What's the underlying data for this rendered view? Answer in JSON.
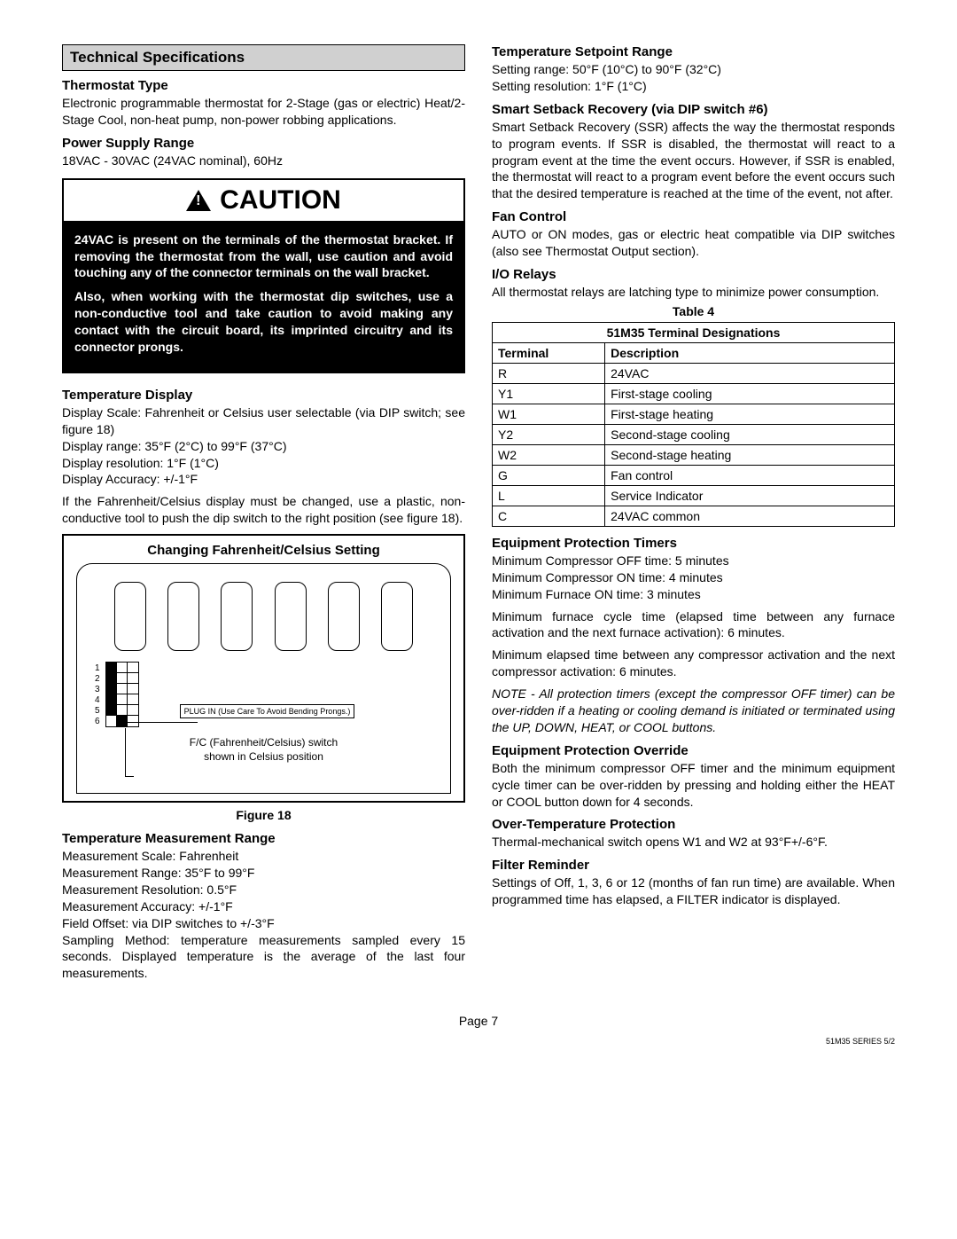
{
  "left": {
    "section_header": "Technical Specifications",
    "thermostat_type_head": "Thermostat Type",
    "thermostat_type_body": "Electronic programmable thermostat for 2-Stage (gas or electric) Heat/2-Stage Cool, non-heat pump, non-power robbing applications.",
    "power_head": "Power Supply Range",
    "power_body": "18VAC - 30VAC (24VAC nominal), 60Hz",
    "caution_title": "CAUTION",
    "caution_p1": "24VAC is present on the terminals of the thermostat bracket. If removing the thermostat from the wall, use caution and avoid touching any of the connector terminals  on the wall bracket.",
    "caution_p2": "Also, when working with the thermostat dip switches, use a non-conductive tool and take caution to avoid making any contact with the circuit board, its imprinted circuitry and its connector prongs.",
    "temp_display_head": "Temperature Display",
    "temp_display_scale": "Display Scale: Fahrenheit or Celsius user selectable (via DIP switch; see figure 18)",
    "temp_display_range": "Display range: 35°F (2°C) to 99°F (37°C)",
    "temp_display_res": "Display resolution: 1°F (1°C)",
    "temp_display_acc": "Display Accuracy: +/-1°F",
    "temp_display_note": "If the Fahrenheit/Celsius display must be changed, use a plastic, non-conductive tool to push the dip switch to the right position (see figure 18).",
    "figure_title": "Changing Fahrenheit/Celsius Setting",
    "plug_label": "PLUG IN (Use Care To Avoid Bending Prongs.)",
    "dip_caption_l1": "F/C (Fahrenheit/Celsius) switch",
    "dip_caption_l2": "shown in Celsius position",
    "figure_caption": "Figure 18",
    "meas_head": "Temperature Measurement Range",
    "meas_scale": "Measurement Scale: Fahrenheit",
    "meas_range": "Measurement Range: 35°F to 99°F",
    "meas_res": "Measurement Resolution: 0.5°F",
    "meas_acc": "Measurement Accuracy: +/-1°F",
    "meas_offset": "Field Offset: via DIP switches to +/-3°F",
    "meas_sampling": "Sampling Method: temperature measurements sampled every 15 seconds. Displayed temperature is the average of the last four measurements."
  },
  "right": {
    "setpoint_head": "Temperature Setpoint Range",
    "setpoint_range": "Setting range:  50°F (10°C) to 90°F (32°C)",
    "setpoint_res": "Setting resolution: 1°F (1°C)",
    "ssr_head": "Smart Setback Recovery (via DIP switch #6)",
    "ssr_body": "Smart Setback Recovery (SSR) affects the way the thermostat responds to program events. If SSR is disabled, the thermostat will react to a program event at the time the event occurs. However, if SSR is enabled, the thermostat will react to a program event before the event occurs such that the desired temperature is reached at the time of the event, not after.",
    "fan_head": "Fan Control",
    "fan_body": "AUTO or ON modes, gas or electric heat compatible via DIP switches (also see Thermostat Output section).",
    "io_head": "I/O Relays",
    "io_body": "All thermostat relays are latching type to minimize power consumption.",
    "table_label": "Table 4",
    "table_title": "51M35 Terminal Designations",
    "table_h1": "Terminal",
    "table_h2": "Description",
    "rows": [
      {
        "t": "R",
        "d": "24VAC"
      },
      {
        "t": "Y1",
        "d": "First-stage cooling"
      },
      {
        "t": "W1",
        "d": "First-stage heating"
      },
      {
        "t": "Y2",
        "d": "Second-stage cooling"
      },
      {
        "t": "W2",
        "d": "Second-stage heating"
      },
      {
        "t": "G",
        "d": "Fan control"
      },
      {
        "t": "L",
        "d": "Service Indicator"
      },
      {
        "t": "C",
        "d": "24VAC common"
      }
    ],
    "ept_head": "Equipment Protection Timers",
    "ept_l1": "Minimum Compressor OFF time: 5 minutes",
    "ept_l2": "Minimum Compressor ON time: 4 minutes",
    "ept_l3": "Minimum Furnace ON time: 3 minutes",
    "ept_p1": "Minimum furnace cycle time (elapsed time between any furnace activation and the next furnace activation): 6 minutes.",
    "ept_p2": "Minimum elapsed time between any compressor activation and the next compressor activation: 6 minutes.",
    "ept_note": "NOTE - All protection timers (except the compressor OFF timer) can be over-ridden if a heating or cooling demand is initiated or terminated using the UP, DOWN, HEAT, or COOL buttons.",
    "epo_head": "Equipment Protection Override",
    "epo_body": "Both the minimum compressor OFF timer and the minimum equipment cycle timer can be over-ridden by pressing and holding either the HEAT or COOL button down for 4 seconds.",
    "otp_head": "Over-Temperature Protection",
    "otp_body": "Thermal-mechanical switch opens W1 and W2 at 93°F+/-6°F.",
    "filter_head": "Filter Reminder",
    "filter_body": "Settings of Off, 1, 3, 6 or 12 (months of fan run time) are available. When programmed time has elapsed, a FILTER indicator is displayed."
  },
  "footer": {
    "page": "Page 7",
    "series": "51M35 SERIES 5/2"
  },
  "dip": {
    "numbers": [
      "1",
      "2",
      "3",
      "4",
      "5",
      "6"
    ],
    "states": [
      [
        true,
        false,
        false
      ],
      [
        true,
        false,
        false
      ],
      [
        true,
        false,
        false
      ],
      [
        true,
        false,
        false
      ],
      [
        true,
        false,
        false
      ],
      [
        false,
        true,
        false
      ]
    ]
  }
}
